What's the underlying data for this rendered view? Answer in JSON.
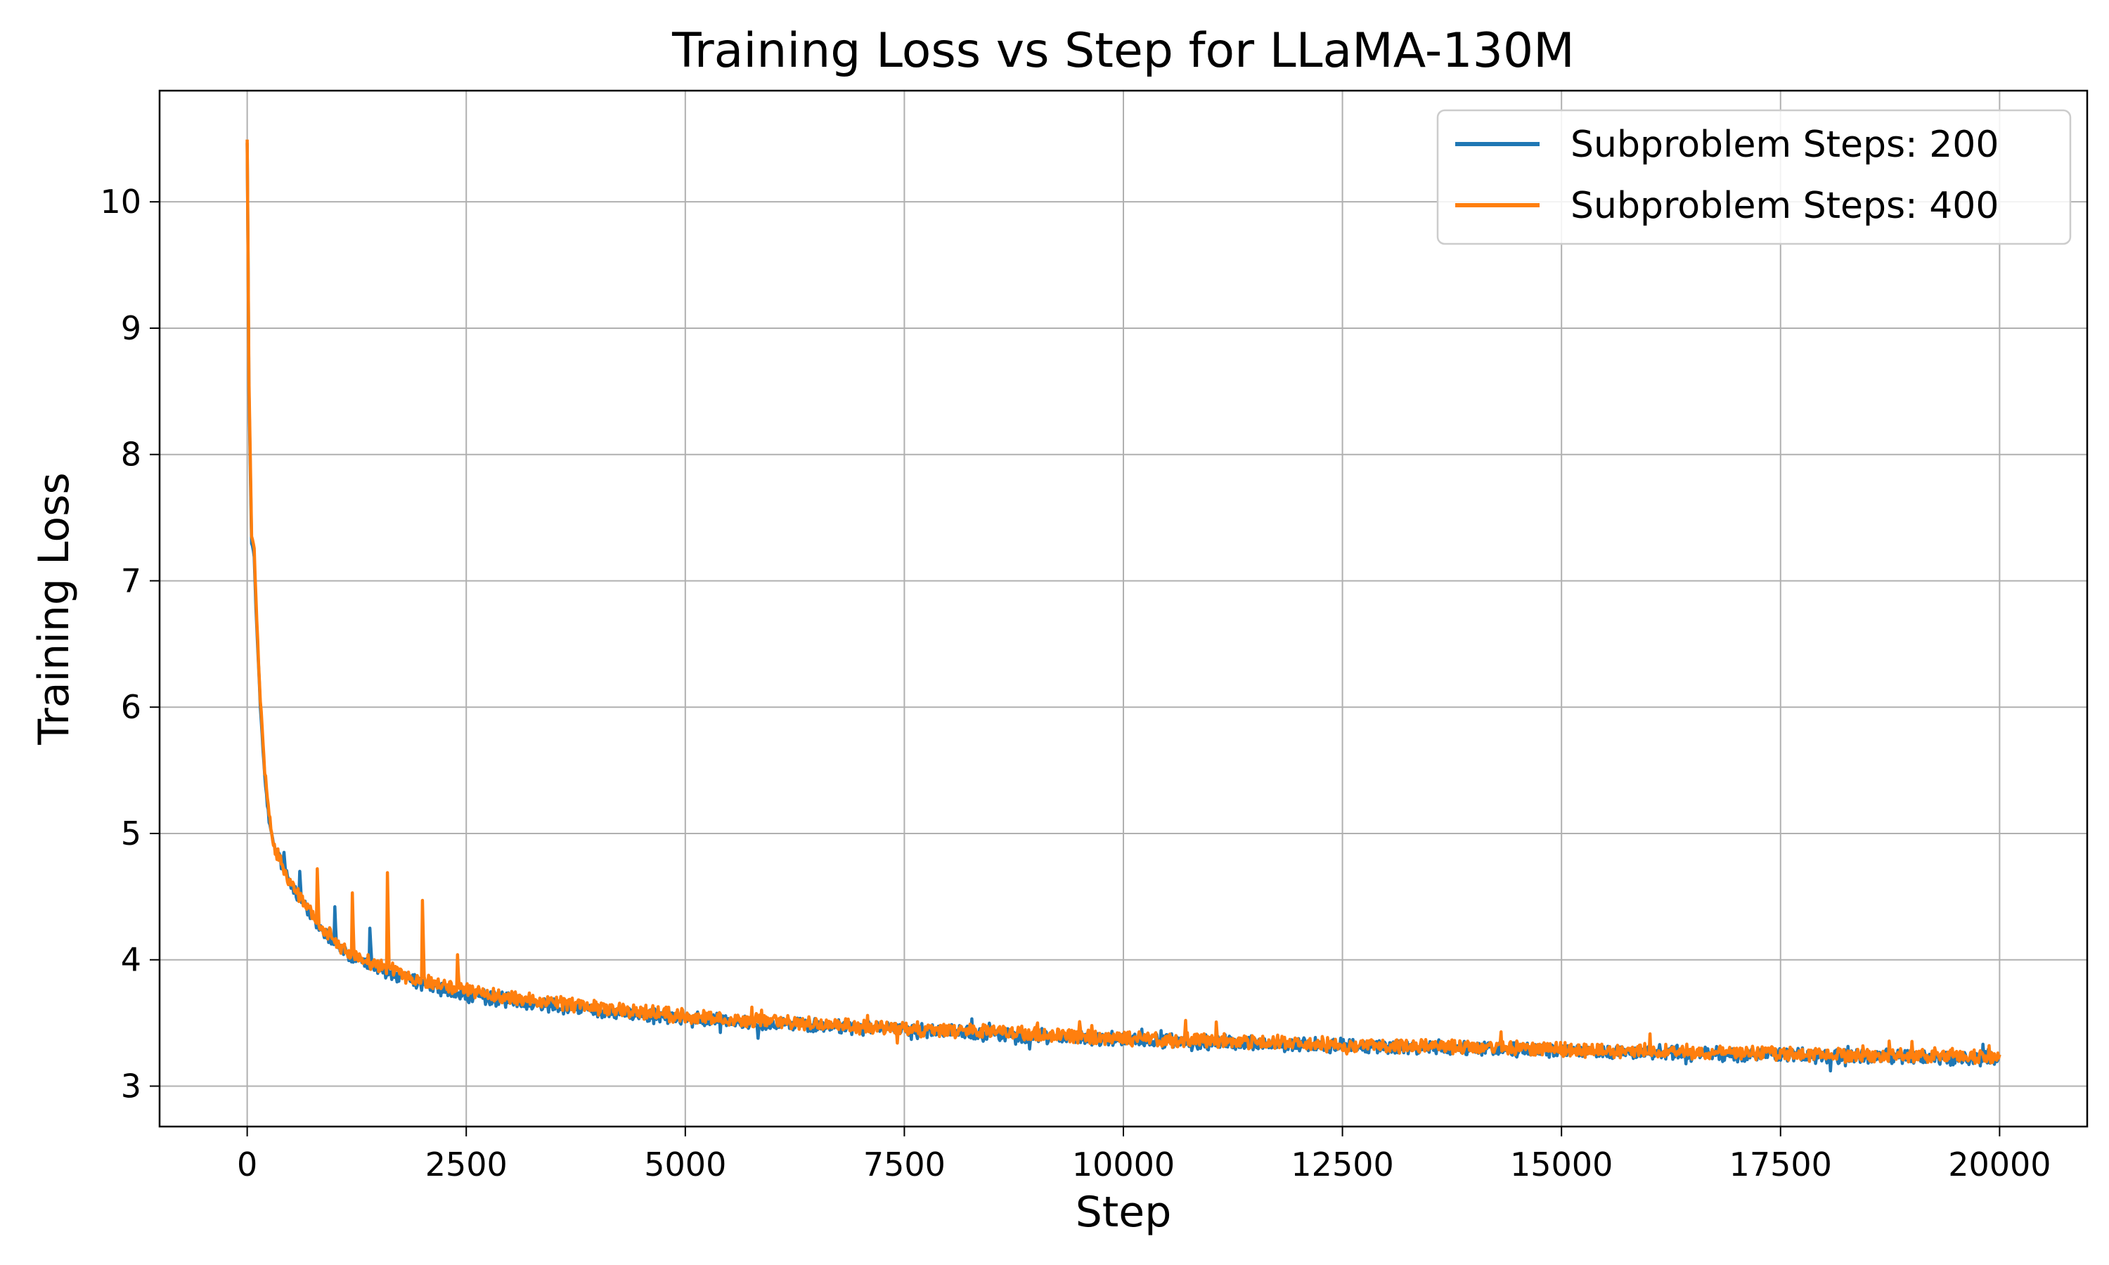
{
  "chart_data": {
    "type": "line",
    "title": "Training Loss vs Step for LLaMA-130M",
    "xlabel": "Step",
    "ylabel": "Training Loss",
    "xlim": [
      -1000,
      21000
    ],
    "ylim": [
      2.68,
      10.88
    ],
    "xticks": [
      0,
      2500,
      5000,
      7500,
      10000,
      12500,
      15000,
      17500,
      20000
    ],
    "yticks": [
      3,
      4,
      5,
      6,
      7,
      8,
      9,
      10
    ],
    "grid": true,
    "legend_position": "top-right",
    "series": [
      {
        "name": "Subproblem Steps: 200",
        "color": "#1f77b4",
        "x": [
          0,
          20,
          50,
          80,
          100,
          150,
          200,
          250,
          300,
          400,
          500,
          600,
          700,
          800,
          1000,
          1200,
          1400,
          1600,
          2000,
          2500,
          3000,
          4000,
          5000,
          6000,
          7000,
          8000,
          9000,
          10000,
          11000,
          12000,
          13000,
          14000,
          15000,
          16000,
          17000,
          18000,
          19000,
          20000
        ],
        "y": [
          10.5,
          8.5,
          7.3,
          7.2,
          6.8,
          6.0,
          5.45,
          5.1,
          4.9,
          4.75,
          4.6,
          4.5,
          4.38,
          4.28,
          4.12,
          4.02,
          3.96,
          3.9,
          3.8,
          3.72,
          3.68,
          3.6,
          3.53,
          3.5,
          3.46,
          3.43,
          3.4,
          3.37,
          3.35,
          3.33,
          3.31,
          3.3,
          3.28,
          3.27,
          3.25,
          3.24,
          3.23,
          3.22
        ],
        "spikes": [
          [
            420,
            4.85
          ],
          [
            600,
            4.7
          ],
          [
            1000,
            4.42
          ],
          [
            1400,
            4.25
          ]
        ]
      },
      {
        "name": "Subproblem Steps: 400",
        "color": "#ff7f0e",
        "x": [
          0,
          20,
          50,
          80,
          100,
          150,
          200,
          250,
          300,
          400,
          500,
          600,
          700,
          800,
          1000,
          1200,
          1400,
          1600,
          2000,
          2500,
          3000,
          4000,
          5000,
          6000,
          7000,
          8000,
          9000,
          10000,
          11000,
          12000,
          13000,
          14000,
          15000,
          16000,
          17000,
          18000,
          19000,
          20000
        ],
        "y": [
          10.5,
          8.6,
          7.35,
          7.25,
          6.85,
          6.05,
          5.5,
          5.15,
          4.92,
          4.72,
          4.6,
          4.5,
          4.4,
          4.3,
          4.15,
          4.05,
          3.98,
          3.93,
          3.83,
          3.75,
          3.7,
          3.62,
          3.55,
          3.51,
          3.47,
          3.44,
          3.41,
          3.38,
          3.36,
          3.34,
          3.32,
          3.31,
          3.29,
          3.28,
          3.26,
          3.25,
          3.24,
          3.23
        ],
        "spikes": [
          [
            800,
            4.72
          ],
          [
            1200,
            4.53
          ],
          [
            1600,
            4.69
          ],
          [
            2000,
            4.47
          ],
          [
            2400,
            4.04
          ]
        ]
      }
    ]
  }
}
